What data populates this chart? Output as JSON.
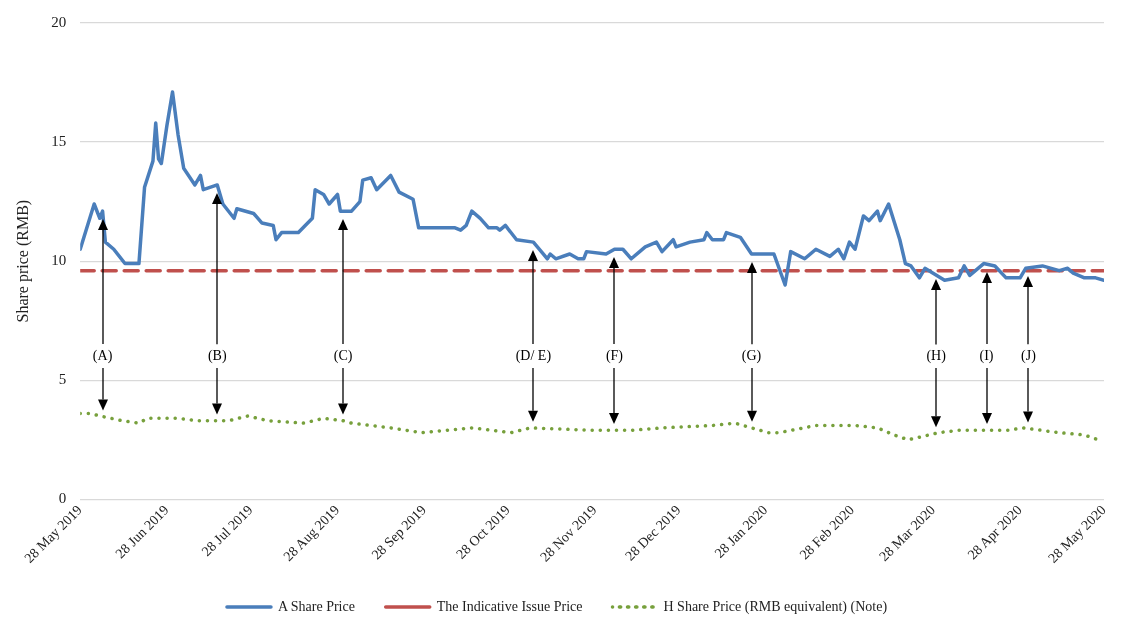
{
  "chart_data": {
    "type": "line",
    "ylabel": "Share price (RMB)",
    "ylim": [
      0,
      20
    ],
    "yticks": [
      0,
      5,
      10,
      15,
      20
    ],
    "xlim": [
      "2019-05-28",
      "2020-05-28"
    ],
    "xticks": [
      {
        "value": "2019-05-28",
        "label": "28 May 2019"
      },
      {
        "value": "2019-06-28",
        "label": "28 Jun 2019"
      },
      {
        "value": "2019-07-28",
        "label": "28 Jul 2019"
      },
      {
        "value": "2019-08-28",
        "label": "28 Aug 2019"
      },
      {
        "value": "2019-09-28",
        "label": "28 Sep 2019"
      },
      {
        "value": "2019-10-28",
        "label": "28 Oct 2019"
      },
      {
        "value": "2019-11-28",
        "label": "28 Nov 2019"
      },
      {
        "value": "2019-12-28",
        "label": "28 Dec 2019"
      },
      {
        "value": "2020-01-28",
        "label": "28 Jan 2020"
      },
      {
        "value": "2020-02-28",
        "label": "28 Feb 2020"
      },
      {
        "value": "2020-03-28",
        "label": "28 Mar 2020"
      },
      {
        "value": "2020-04-28",
        "label": "28 Apr 2020"
      },
      {
        "value": "2020-05-28",
        "label": "28 May 2020"
      }
    ],
    "grid": "y",
    "legend": "bottom",
    "marker": "none",
    "series": [
      {
        "name": "A Share Price",
        "color": "#4a7ebb",
        "line_style": "solid",
        "x": [
          "2019-05-28",
          "2019-06-02",
          "2019-06-04",
          "2019-06-05",
          "2019-06-06",
          "2019-06-09",
          "2019-06-13",
          "2019-06-18",
          "2019-06-20",
          "2019-06-23",
          "2019-06-24",
          "2019-06-25",
          "2019-06-26",
          "2019-06-28",
          "2019-06-30",
          "2019-07-02",
          "2019-07-04",
          "2019-07-08",
          "2019-07-10",
          "2019-07-11",
          "2019-07-16",
          "2019-07-18",
          "2019-07-22",
          "2019-07-23",
          "2019-07-29",
          "2019-08-01",
          "2019-08-05",
          "2019-08-06",
          "2019-08-08",
          "2019-08-14",
          "2019-08-19",
          "2019-08-20",
          "2019-08-23",
          "2019-08-25",
          "2019-08-28",
          "2019-08-29",
          "2019-09-02",
          "2019-09-05",
          "2019-09-06",
          "2019-09-09",
          "2019-09-11",
          "2019-09-16",
          "2019-09-19",
          "2019-09-24",
          "2019-09-26",
          "2019-09-29",
          "2019-10-09",
          "2019-10-11",
          "2019-10-13",
          "2019-10-15",
          "2019-10-18",
          "2019-10-21",
          "2019-10-24",
          "2019-10-25",
          "2019-10-27",
          "2019-10-31",
          "2019-11-06",
          "2019-11-11",
          "2019-11-12",
          "2019-11-14",
          "2019-11-19",
          "2019-11-22",
          "2019-11-24",
          "2019-11-25",
          "2019-12-02",
          "2019-12-05",
          "2019-12-08",
          "2019-12-11",
          "2019-12-16",
          "2019-12-20",
          "2019-12-22",
          "2019-12-26",
          "2019-12-27",
          "2020-01-01",
          "2020-01-06",
          "2020-01-07",
          "2020-01-09",
          "2020-01-13",
          "2020-01-14",
          "2020-01-19",
          "2020-01-23",
          "2020-01-31",
          "2020-02-04",
          "2020-02-06",
          "2020-02-11",
          "2020-02-15",
          "2020-02-20",
          "2020-02-23",
          "2020-02-25",
          "2020-02-27",
          "2020-02-29",
          "2020-03-03",
          "2020-03-05",
          "2020-03-08",
          "2020-03-09",
          "2020-03-12",
          "2020-03-16",
          "2020-03-18",
          "2020-03-20",
          "2020-03-23",
          "2020-03-25",
          "2020-04-01",
          "2020-04-06",
          "2020-04-08",
          "2020-04-10",
          "2020-04-15",
          "2020-04-19",
          "2020-04-23",
          "2020-04-28",
          "2020-04-30",
          "2020-05-06",
          "2020-05-12",
          "2020-05-15",
          "2020-05-17",
          "2020-05-21",
          "2020-05-25",
          "2020-05-28"
        ],
        "values": [
          10.5,
          12.4,
          11.8,
          12.1,
          10.8,
          10.5,
          9.9,
          9.9,
          13.1,
          14.2,
          15.8,
          14.3,
          14.1,
          15.7,
          17.1,
          15.3,
          13.9,
          13.2,
          13.6,
          13.0,
          13.2,
          12.4,
          11.8,
          12.2,
          12.0,
          11.6,
          11.5,
          10.9,
          11.2,
          11.2,
          11.8,
          13.0,
          12.8,
          12.4,
          12.8,
          12.1,
          12.1,
          12.5,
          13.4,
          13.5,
          13.0,
          13.6,
          12.9,
          12.6,
          11.4,
          11.4,
          11.4,
          11.3,
          11.5,
          12.1,
          11.8,
          11.4,
          11.4,
          11.3,
          11.5,
          10.9,
          10.8,
          10.1,
          10.3,
          10.1,
          10.3,
          10.1,
          10.1,
          10.4,
          10.3,
          10.5,
          10.5,
          10.1,
          10.6,
          10.8,
          10.4,
          10.9,
          10.6,
          10.8,
          10.9,
          11.2,
          10.9,
          10.9,
          11.2,
          11.0,
          10.3,
          10.3,
          9.0,
          10.4,
          10.1,
          10.5,
          10.2,
          10.5,
          10.1,
          10.8,
          10.5,
          11.9,
          11.7,
          12.1,
          11.7,
          12.4,
          10.9,
          9.9,
          9.8,
          9.3,
          9.7,
          9.2,
          9.3,
          9.8,
          9.4,
          9.9,
          9.8,
          9.3,
          9.3,
          9.7,
          9.8,
          9.6,
          9.7,
          9.5,
          9.3,
          9.3,
          9.2
        ]
      },
      {
        "name": "The Indicative Issue Price",
        "color": "#c0504d",
        "line_style": "dashed",
        "x": [
          "2019-05-28",
          "2020-05-28"
        ],
        "values": [
          9.6,
          9.6
        ]
      },
      {
        "name": "H Share Price (RMB equivalent) (Note)",
        "color": "#77a03c",
        "line_style": "dotted",
        "x": [
          "2019-05-28",
          "2019-06-01",
          "2019-06-04",
          "2019-06-12",
          "2019-06-18",
          "2019-06-21",
          "2019-07-02",
          "2019-07-09",
          "2019-07-20",
          "2019-07-27",
          "2019-08-03",
          "2019-08-16",
          "2019-08-23",
          "2019-08-30",
          "2019-09-02",
          "2019-09-16",
          "2019-09-27",
          "2019-10-15",
          "2019-10-29",
          "2019-11-05",
          "2019-11-27",
          "2019-12-11",
          "2019-12-22",
          "2020-01-09",
          "2020-01-17",
          "2020-01-29",
          "2020-02-02",
          "2020-02-15",
          "2020-02-29",
          "2020-03-08",
          "2020-03-14",
          "2020-03-19",
          "2020-03-30",
          "2020-04-06",
          "2020-04-24",
          "2020-04-29",
          "2020-05-12",
          "2020-05-21",
          "2020-05-26"
        ],
        "values": [
          3.6,
          3.6,
          3.5,
          3.3,
          3.2,
          3.4,
          3.4,
          3.3,
          3.3,
          3.5,
          3.3,
          3.2,
          3.4,
          3.3,
          3.2,
          3.0,
          2.8,
          3.0,
          2.8,
          3.0,
          2.9,
          2.9,
          3.0,
          3.1,
          3.2,
          2.8,
          2.8,
          3.1,
          3.1,
          3.0,
          2.7,
          2.5,
          2.8,
          2.9,
          2.9,
          3.0,
          2.8,
          2.7,
          2.5
        ]
      }
    ],
    "annotations": [
      {
        "text": "(A)",
        "x": "2019-06-05"
      },
      {
        "text": "(B)",
        "x": "2019-07-16"
      },
      {
        "text": "(C)",
        "x": "2019-08-30"
      },
      {
        "text": "(D/ E)",
        "x": "2019-11-06"
      },
      {
        "text": "(F)",
        "x": "2019-12-05"
      },
      {
        "text": "(G)",
        "x": "2020-01-23"
      },
      {
        "text": "(H)",
        "x": "2020-03-29"
      },
      {
        "text": "(I)",
        "x": "2020-04-16"
      },
      {
        "text": "(J)",
        "x": "2020-05-01"
      }
    ]
  }
}
